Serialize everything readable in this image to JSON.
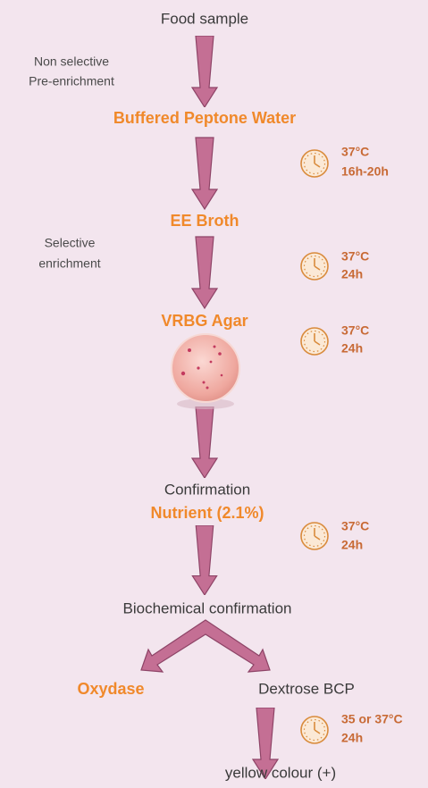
{
  "steps": [
    {
      "label": "Food sample"
    },
    {
      "label": "Buffered Peptone Water"
    },
    {
      "label": "EE Broth"
    },
    {
      "label": "VRBG Agar"
    },
    {
      "label": "Confirmation"
    },
    {
      "label": "Nutrient (2.1%)"
    },
    {
      "label": "Biochemical confirmation"
    },
    {
      "label": "Oxydase"
    },
    {
      "label": "Dextrose BCP"
    },
    {
      "label": "yellow colour (+)"
    }
  ],
  "annotations": [
    {
      "lines": [
        "Non selective",
        "Pre-enrichment"
      ]
    },
    {
      "lines": [
        "Selective",
        "enrichment"
      ]
    }
  ],
  "incubations": [
    {
      "temperature": "37°C",
      "time": "16h-20h"
    },
    {
      "temperature": "37°C",
      "time": "24h"
    },
    {
      "temperature": "37°C",
      "time": "24h"
    },
    {
      "temperature": "37°C",
      "time": "24h"
    },
    {
      "temperature": "35 or 37°C",
      "time": "24h"
    }
  ]
}
